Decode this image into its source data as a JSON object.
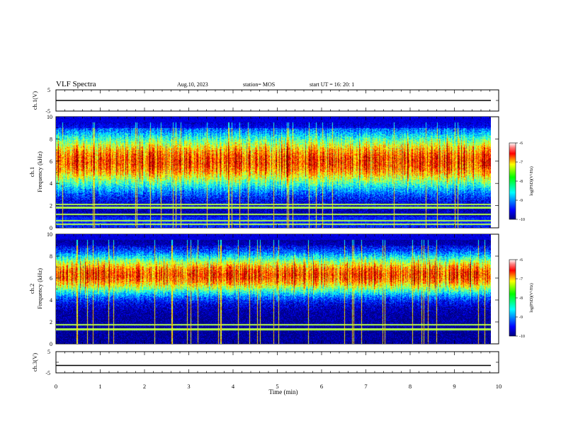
{
  "header": {
    "title": "VLF Spectra",
    "date": "Aug.10, 2023",
    "station": "station= MOS",
    "start": "start  UT  =   16: 20: 1"
  },
  "chart_data": [
    {
      "type": "line",
      "name": "ch.1 waveform panel",
      "ylabel": "ch.1(V)",
      "yticks": [
        "5",
        "-5"
      ],
      "ylim": [
        -5,
        5
      ],
      "xlim": [
        0,
        10
      ],
      "level": 0
    },
    {
      "type": "heatmap",
      "name": "ch.1 spectrogram",
      "ylabel_line1": "ch.1",
      "ylabel_line2": "Frequency (kHz)",
      "yticks": [
        "0",
        "2",
        "4",
        "6",
        "8",
        "10"
      ],
      "ylim": [
        0,
        10
      ],
      "xlim": [
        0,
        9.82
      ],
      "colorbar": {
        "label": "log(PSD)(V²/Hz)",
        "ticks": [
          "-6",
          "-7",
          "-8",
          "-9",
          "-10"
        ],
        "range": [
          -10,
          -6
        ]
      },
      "band_center_khz": 6.0,
      "band_low_khz": 2.5,
      "band_high_khz": 9.0,
      "lines_khz": [
        0.3,
        0.6,
        1.2,
        1.8,
        2.1
      ]
    },
    {
      "type": "heatmap",
      "name": "ch.2 spectrogram",
      "ylabel_line1": "ch.2",
      "ylabel_line2": "Frequency (kHz)",
      "yticks": [
        "0",
        "2",
        "4",
        "6",
        "8",
        "10"
      ],
      "ylim": [
        0,
        10
      ],
      "xlim": [
        0,
        9.82
      ],
      "colorbar": {
        "label": "log(PSD)(V²/Hz)",
        "ticks": [
          "-6",
          "-7",
          "-8",
          "-9",
          "-10"
        ],
        "range": [
          -10,
          -6
        ]
      },
      "band_center_khz": 6.3,
      "band_low_khz": 3.5,
      "band_high_khz": 9.0,
      "lines_khz": [
        1.3,
        1.7
      ]
    },
    {
      "type": "line",
      "name": "ch.3 waveform panel",
      "ylabel": "ch.3(V)",
      "yticks": [
        "5",
        "-5"
      ],
      "ylim": [
        -5,
        5
      ],
      "xlim": [
        0,
        10
      ],
      "level": -1.5
    }
  ],
  "xaxis": {
    "label": "Time  (min)",
    "ticks": [
      "0",
      "1",
      "2",
      "3",
      "4",
      "5",
      "6",
      "7",
      "8",
      "9",
      "10"
    ],
    "range": [
      0,
      10
    ]
  }
}
